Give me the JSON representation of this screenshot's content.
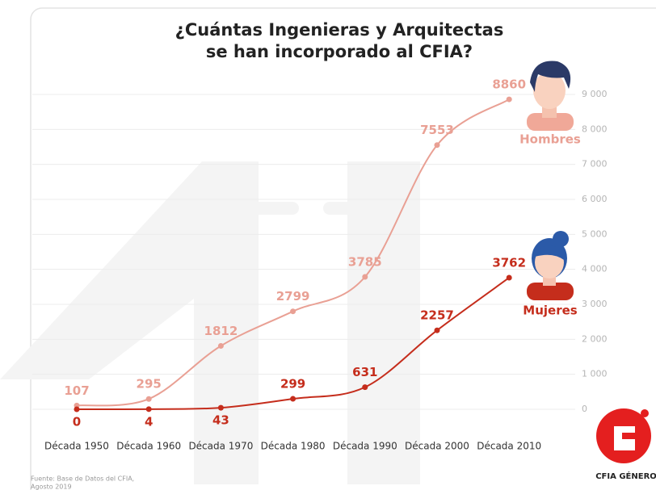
{
  "chart_data": {
    "type": "line",
    "title": [
      "¿Cuántas Ingenieras y Arquitectas",
      "se han incorporado al CFIA?"
    ],
    "categories": [
      "Década 1950",
      "Década 1960",
      "Década 1970",
      "Década 1980",
      "Década 1990",
      "Década 2000",
      "Década 2010"
    ],
    "series": [
      {
        "name": "Hombres",
        "color": "#e9a094",
        "values": [
          107,
          295,
          1812,
          2799,
          3785,
          7553,
          8860
        ]
      },
      {
        "name": "Mujeres",
        "color": "#c52d1c",
        "values": [
          0,
          4,
          43,
          299,
          631,
          2257,
          3762
        ]
      }
    ],
    "ylim": [
      0,
      9000
    ],
    "yticks": [
      0,
      {
        "value": 1000,
        "label": "1 000"
      },
      {
        "value": 2000,
        "label": "2 000"
      },
      {
        "value": 3000,
        "label": "3 000"
      },
      {
        "value": 4000,
        "label": "4 000"
      },
      {
        "value": 5000,
        "label": "5 000"
      },
      {
        "value": 6000,
        "label": "6 000"
      },
      {
        "value": 7000,
        "label": "7 000"
      },
      {
        "value": 8000,
        "label": "8 000"
      },
      {
        "value": 9000,
        "label": "9 000"
      }
    ],
    "grid": true,
    "source": [
      "Fuente: Base de Datos del CFIA,",
      "Agosto 2019"
    ],
    "logo": "CFIA GÉNERO"
  }
}
